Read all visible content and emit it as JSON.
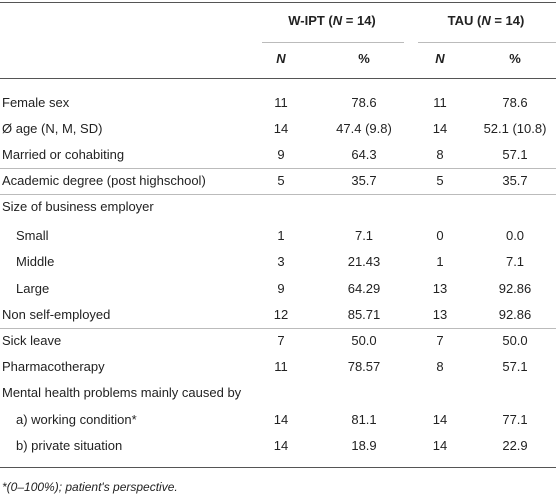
{
  "table": {
    "group_headers": [
      {
        "parts": [
          "W-IPT (",
          "N",
          " = 14)"
        ]
      },
      {
        "parts": [
          "TAU (",
          "N",
          " = 14)"
        ]
      }
    ],
    "sub_headers": [
      "N",
      "%",
      "N",
      "%"
    ],
    "rows": [
      [
        "Female sex",
        "11",
        "78.6",
        "11",
        "78.6"
      ],
      [
        "Ø age (N, M, SD)",
        "14",
        "47.4 (9.8)",
        "14",
        "52.1 (10.8)"
      ],
      [
        "Married or cohabiting",
        "9",
        "64.3",
        "8",
        "57.1"
      ],
      [
        "Academic degree (post highschool)",
        "5",
        "35.7",
        "5",
        "35.7"
      ],
      [
        "Size of business employer"
      ],
      [
        "Small",
        "1",
        "7.1",
        "0",
        "0.0"
      ],
      [
        "Middle",
        "3",
        "21.43",
        "1",
        "7.1"
      ],
      [
        "Large",
        "9",
        "64.29",
        "13",
        "92.86"
      ],
      [
        "Non self-employed",
        "12",
        "85.71",
        "13",
        "92.86"
      ],
      [
        "Sick leave",
        "7",
        "50.0",
        "7",
        "50.0"
      ],
      [
        "Pharmacotherapy",
        "11",
        "78.57",
        "8",
        "57.1"
      ],
      [
        "Mental health problems mainly caused by"
      ],
      [
        "a) working condition*",
        "14",
        "81.1",
        "14",
        "77.1"
      ],
      [
        "b) private situation",
        "14",
        "18.9",
        "14",
        "22.9"
      ]
    ],
    "footnote": "*(0–100%); patient's perspective."
  }
}
